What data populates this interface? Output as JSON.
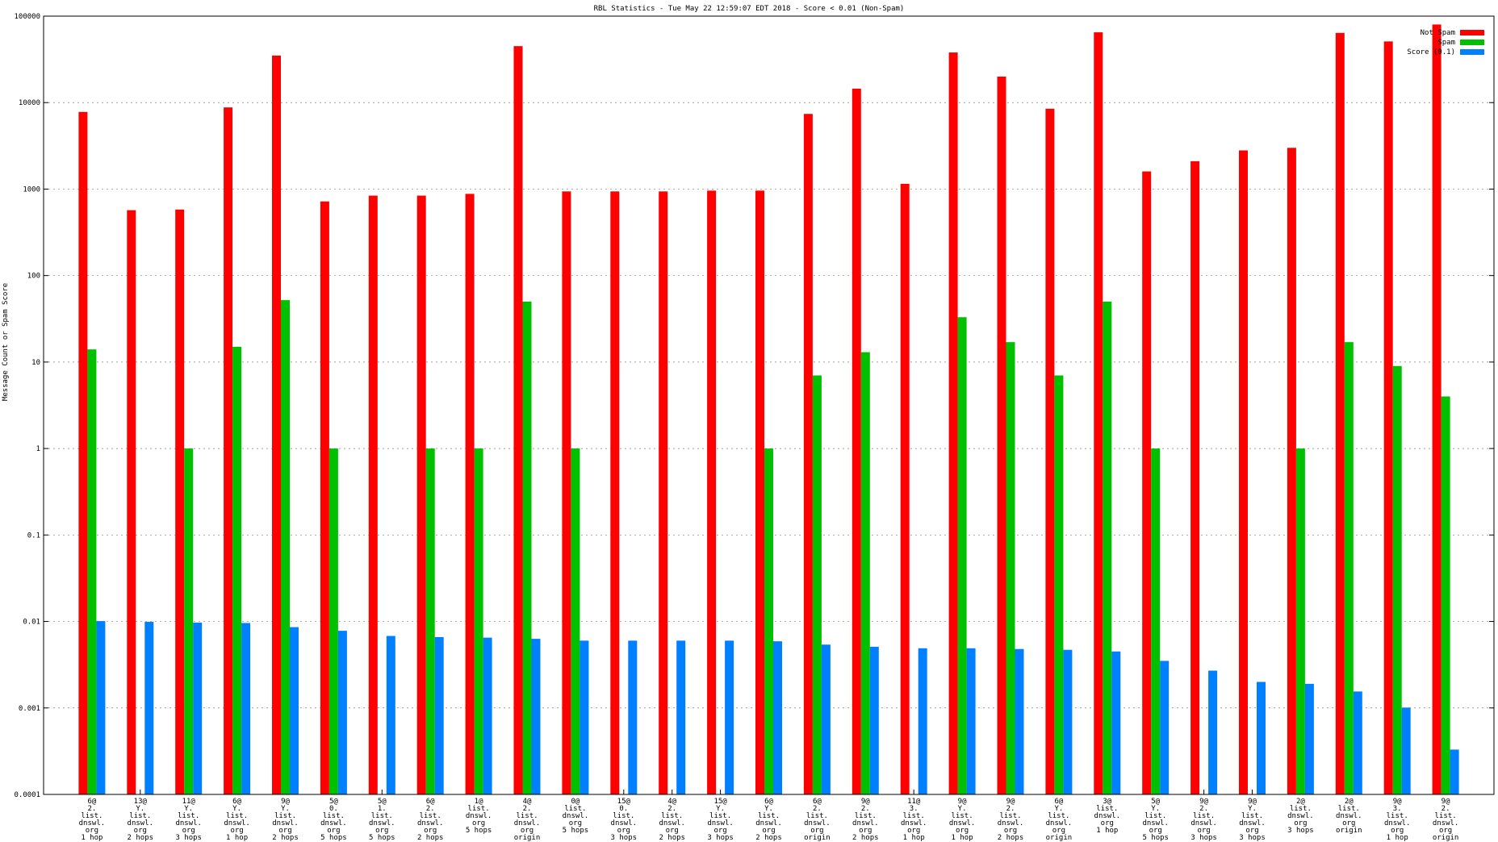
{
  "chart_data": {
    "type": "bar",
    "title": "RBL Statistics - Tue May 22 12:59:07 EDT 2018 - Score < 0.01 (Non-Spam)",
    "xlabel": "",
    "ylabel": "Message Count or Spam Score",
    "yscale": "log",
    "ylim": [
      0.0001,
      100000
    ],
    "yticks": [
      "0.0001",
      "0.001",
      "0.01",
      "0.1",
      "1",
      "10",
      "100",
      "1000",
      "10000",
      "100000"
    ],
    "grid": true,
    "legend_position": "top-right",
    "categories": [
      [
        "6@",
        "2.",
        "list.",
        "dnswl.",
        "org",
        "1 hop"
      ],
      [
        "13@",
        "Y.",
        "list.",
        "dnswl.",
        "org",
        "2 hops"
      ],
      [
        "11@",
        "Y.",
        "list.",
        "dnswl.",
        "org",
        "3 hops"
      ],
      [
        "6@",
        "Y.",
        "list.",
        "dnswl.",
        "org",
        "1 hop"
      ],
      [
        "9@",
        "Y.",
        "list.",
        "dnswl.",
        "org",
        "2 hops"
      ],
      [
        "5@",
        "0.",
        "list.",
        "dnswl.",
        "org",
        "5 hops"
      ],
      [
        "5@",
        "1.",
        "list.",
        "dnswl.",
        "org",
        "5 hops"
      ],
      [
        "6@",
        "2.",
        "list.",
        "dnswl.",
        "org",
        "2 hops"
      ],
      [
        "1@",
        "list.",
        "dnswl.",
        "org",
        "5 hops"
      ],
      [
        "4@",
        "2.",
        "list.",
        "dnswl.",
        "org",
        "origin"
      ],
      [
        "0@",
        "list.",
        "dnswl.",
        "org",
        "5 hops"
      ],
      [
        "15@",
        "0.",
        "list.",
        "dnswl.",
        "org",
        "3 hops"
      ],
      [
        "4@",
        "2.",
        "list.",
        "dnswl.",
        "org",
        "2 hops"
      ],
      [
        "15@",
        "Y.",
        "list.",
        "dnswl.",
        "org",
        "3 hops"
      ],
      [
        "6@",
        "Y.",
        "list.",
        "dnswl.",
        "org",
        "2 hops"
      ],
      [
        "6@",
        "2.",
        "list.",
        "dnswl.",
        "org",
        "origin"
      ],
      [
        "9@",
        "2.",
        "list.",
        "dnswl.",
        "org",
        "2 hops"
      ],
      [
        "11@",
        "3.",
        "list.",
        "dnswl.",
        "org",
        "1 hop"
      ],
      [
        "9@",
        "Y.",
        "list.",
        "dnswl.",
        "org",
        "1 hop"
      ],
      [
        "9@",
        "2.",
        "list.",
        "dnswl.",
        "org",
        "2 hops"
      ],
      [
        "6@",
        "Y.",
        "list.",
        "dnswl.",
        "org",
        "origin"
      ],
      [
        "3@",
        "list.",
        "dnswl.",
        "org",
        "1 hop"
      ],
      [
        "5@",
        "Y.",
        "list.",
        "dnswl.",
        "org",
        "5 hops"
      ],
      [
        "9@",
        "2.",
        "list.",
        "dnswl.",
        "org",
        "3 hops"
      ],
      [
        "9@",
        "Y.",
        "list.",
        "dnswl.",
        "org",
        "3 hops"
      ],
      [
        "2@",
        "list.",
        "dnswl.",
        "org",
        "3 hops"
      ],
      [
        "2@",
        "list.",
        "dnswl.",
        "org",
        "origin"
      ],
      [
        "9@",
        "3.",
        "list.",
        "dnswl.",
        "org",
        "1 hop"
      ],
      [
        "9@",
        "2.",
        "list.",
        "dnswl.",
        "org",
        "origin"
      ]
    ],
    "series": [
      {
        "name": "Not Spam",
        "color": "#ff0000",
        "values": [
          7800,
          570,
          580,
          8800,
          35000,
          720,
          840,
          840,
          880,
          45000,
          940,
          940,
          940,
          960,
          960,
          7400,
          14500,
          1150,
          38000,
          20000,
          8500,
          65000,
          1600,
          2100,
          2800,
          3000,
          64000,
          51000,
          80000
        ]
      },
      {
        "name": "Spam",
        "color": "#00c000",
        "values": [
          14,
          null,
          1,
          15,
          52,
          1,
          null,
          1,
          1,
          50,
          1,
          null,
          null,
          null,
          1,
          7,
          13,
          null,
          33,
          17,
          7,
          50,
          1,
          null,
          null,
          1,
          17,
          9,
          4
        ]
      },
      {
        "name": "Score (0.1)",
        "color": "#0080ff",
        "values": [
          0.0101,
          0.0099,
          0.0097,
          0.0096,
          0.0086,
          0.0078,
          0.0068,
          0.0066,
          0.0065,
          0.0063,
          0.006,
          0.006,
          0.006,
          0.006,
          0.0059,
          0.0054,
          0.0051,
          0.0049,
          0.0049,
          0.0048,
          0.0047,
          0.0045,
          0.0035,
          0.0027,
          0.002,
          0.0019,
          0.00155,
          0.00101,
          0.00033
        ]
      }
    ]
  }
}
